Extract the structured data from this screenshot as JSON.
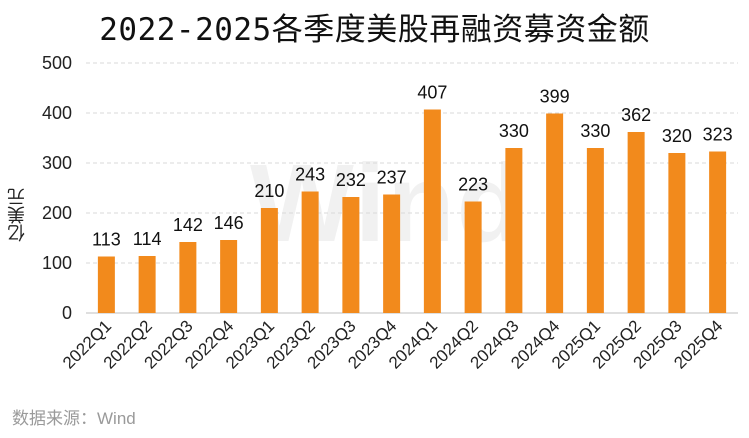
{
  "chart_data": {
    "type": "bar",
    "title": "2022-2025各季度美股再融资募资金额",
    "ylabel": "亿美元",
    "xlabel": "",
    "categories": [
      "2022Q1",
      "2022Q2",
      "2022Q3",
      "2022Q4",
      "2023Q1",
      "2023Q2",
      "2023Q3",
      "2023Q4",
      "2024Q1",
      "2024Q2",
      "2024Q3",
      "2024Q4",
      "2025Q1",
      "2025Q2",
      "2025Q3",
      "2025Q4"
    ],
    "values": [
      113,
      114,
      142,
      146,
      210,
      243,
      232,
      237,
      407,
      223,
      330,
      399,
      330,
      362,
      320,
      323
    ],
    "ylim": [
      0,
      500
    ],
    "yticks": [
      0,
      100,
      200,
      300,
      400,
      500
    ],
    "grid": true,
    "bar_color": "#F28A1C",
    "source": "数据来源：Wind",
    "watermark": "Wind"
  }
}
